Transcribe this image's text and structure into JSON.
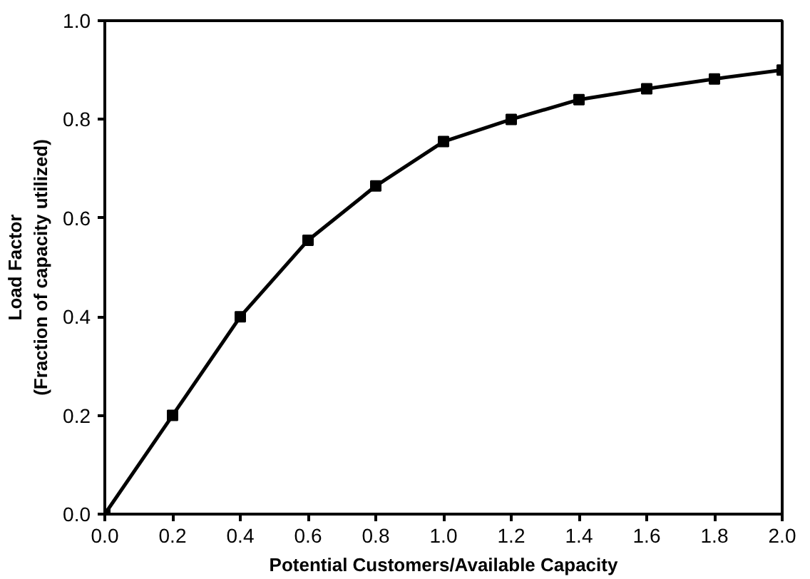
{
  "chart_data": {
    "type": "line",
    "xlabel": "Potential Customers/Available Capacity",
    "ylabel": "Load Factor\n(Fraction of capacity utilized)",
    "x": [
      0.0,
      0.2,
      0.4,
      0.6,
      0.8,
      1.0,
      1.2,
      1.4,
      1.6,
      1.8,
      2.0
    ],
    "series": [
      {
        "color": "#000000",
        "values": [
          0.0,
          0.2,
          0.4,
          0.555,
          0.665,
          0.755,
          0.8,
          0.84,
          0.862,
          0.882,
          0.9
        ]
      }
    ],
    "xlim": [
      0.0,
      2.0
    ],
    "ylim": [
      0.0,
      1.0
    ],
    "xticks": [
      {
        "value": 0,
        "label": "0.0"
      },
      {
        "value": 0.2,
        "label": "0.2"
      },
      {
        "value": 0.4,
        "label": "0.4"
      },
      {
        "value": 0.6,
        "label": "0.6"
      },
      {
        "value": 0.8,
        "label": "0.8"
      },
      {
        "value": 1,
        "label": "1.0"
      },
      {
        "value": 1.2,
        "label": "1.2"
      },
      {
        "value": 1.4,
        "label": "1.4"
      },
      {
        "value": 1.6,
        "label": "1.6"
      },
      {
        "value": 1.8,
        "label": "1.8"
      },
      {
        "value": 2,
        "label": "2.0"
      }
    ],
    "yticks": [
      {
        "value": 0,
        "label": "0.0"
      },
      {
        "value": 0.2,
        "label": "0.2"
      },
      {
        "value": 0.4,
        "label": "0.4"
      },
      {
        "value": 0.6,
        "label": "0.6"
      },
      {
        "value": 0.8,
        "label": "0.8"
      },
      {
        "value": 1,
        "label": "1.0"
      }
    ],
    "grid": false,
    "marker": "square",
    "line_style": "solid"
  }
}
